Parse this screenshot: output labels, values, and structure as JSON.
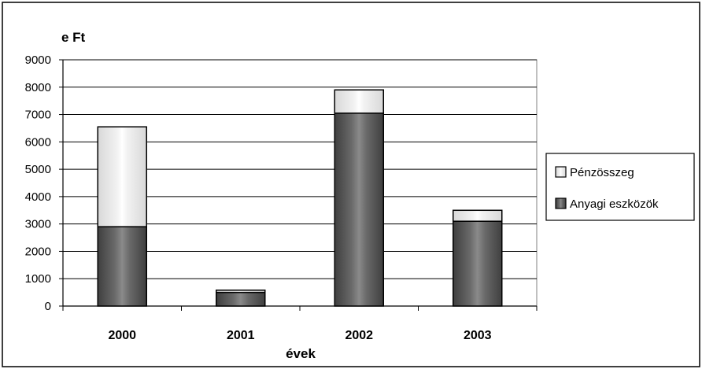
{
  "chart_data": {
    "type": "bar",
    "stacked": true,
    "categories": [
      "2000",
      "2001",
      "2002",
      "2003"
    ],
    "series": [
      {
        "name": "Anyagi eszközök",
        "values": [
          2900,
          500,
          7050,
          3100
        ]
      },
      {
        "name": "Pénzösszeg",
        "values": [
          3650,
          80,
          850,
          400
        ]
      }
    ],
    "ylabel": "e Ft",
    "xlabel": "évek",
    "ylim": [
      0,
      9000
    ],
    "yticks": [
      0,
      1000,
      2000,
      3000,
      4000,
      5000,
      6000,
      7000,
      8000,
      9000
    ],
    "grid": true,
    "legend": "right",
    "colors": {
      "Anyagi eszközök": "#5a5a5a",
      "Pénzösszeg": "#e6e6e6",
      "plot_background": "#ffffff",
      "gridline": "#000000"
    }
  }
}
